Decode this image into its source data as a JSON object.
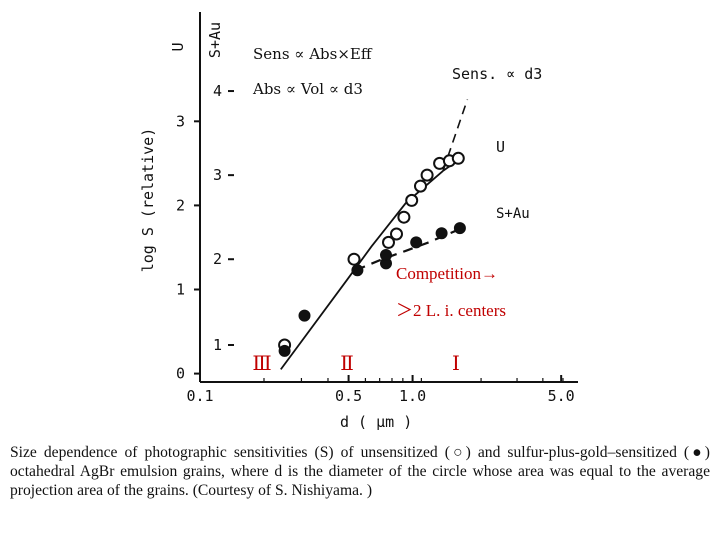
{
  "chart_data": {
    "type": "scatter",
    "title": "",
    "xlabel": "d ( μm )",
    "ylabel": "log S (relative)",
    "xscale": "log",
    "xlim": [
      0.1,
      6.0
    ],
    "xticks": [
      {
        "value": 0.1,
        "label": "0.1"
      },
      {
        "value": 0.5,
        "label": "0.5"
      },
      {
        "value": 1.0,
        "label": "1.0"
      },
      {
        "value": 5.0,
        "label": "5.0"
      }
    ],
    "ylim": [
      -0.1,
      4.3
    ],
    "yaxis_left": {
      "label": "log S (relative)",
      "ticks": [
        "0",
        "1",
        "2",
        "3"
      ],
      "values": [
        0,
        1,
        2,
        3
      ]
    },
    "yaxis_u": {
      "title": "U",
      "ticks": [
        "1",
        "2",
        "3",
        "4"
      ],
      "values": [
        0.34,
        1.36,
        2.36,
        3.36
      ]
    },
    "yaxis_sau": {
      "title": "S+Au"
    },
    "series": [
      {
        "name": "U",
        "marker": "open-circle",
        "x": [
          0.25,
          0.53,
          0.77,
          0.84,
          0.91,
          0.99,
          1.09,
          1.17,
          1.34,
          1.49,
          1.64
        ],
        "y": [
          0.34,
          1.36,
          1.56,
          1.66,
          1.86,
          2.06,
          2.23,
          2.36,
          2.5,
          2.53,
          2.56
        ]
      },
      {
        "name": "S+Au",
        "marker": "filled-circle",
        "x": [
          0.25,
          0.31,
          0.55,
          0.75,
          0.75,
          1.04,
          1.37,
          1.67
        ],
        "y": [
          0.27,
          0.69,
          1.23,
          1.31,
          1.41,
          1.56,
          1.67,
          1.73
        ]
      }
    ],
    "guides": {
      "main_line": {
        "x": [
          0.24,
          0.49,
          0.64,
          0.93,
          1.39
        ],
        "y": [
          0.05,
          1.11,
          1.51,
          2.03,
          2.41
        ]
      },
      "u_curve": {
        "x": [
          1.39,
          1.69
        ],
        "y": [
          2.41,
          2.56
        ]
      },
      "dashed_d3": {
        "x": [
          1.39,
          1.81
        ],
        "y": [
          2.41,
          3.26
        ]
      },
      "s_au_dashed": {
        "x": [
          0.54,
          0.72,
          0.93,
          1.19,
          1.71
        ],
        "y": [
          1.23,
          1.36,
          1.46,
          1.56,
          1.73
        ]
      }
    },
    "annotations": {
      "eq1": "Sens ∝ Abs×Eff",
      "eq2": "Abs ∝ Vol ∝ d3",
      "sens_d3": "Sens. ∝ d3",
      "label_u": "U",
      "label_sau": "S+Au",
      "competition": "Competition→",
      "centers": "＞2 L. i. centers",
      "region_3": "Ⅲ",
      "region_2": "Ⅱ",
      "region_1": "Ⅰ"
    },
    "colors": {
      "ink": "#111111",
      "red": "#c00000"
    }
  },
  "caption": {
    "text": "Size dependence of photographic sensitivities (S) of unsensitized (○) and sulfur-plus-gold–sensitized (●) octahedral AgBr emulsion grains, where d is the diameter of the circle whose area was equal to the average projection area of the grains. (Courtesy of S. Nishiyama. )"
  }
}
